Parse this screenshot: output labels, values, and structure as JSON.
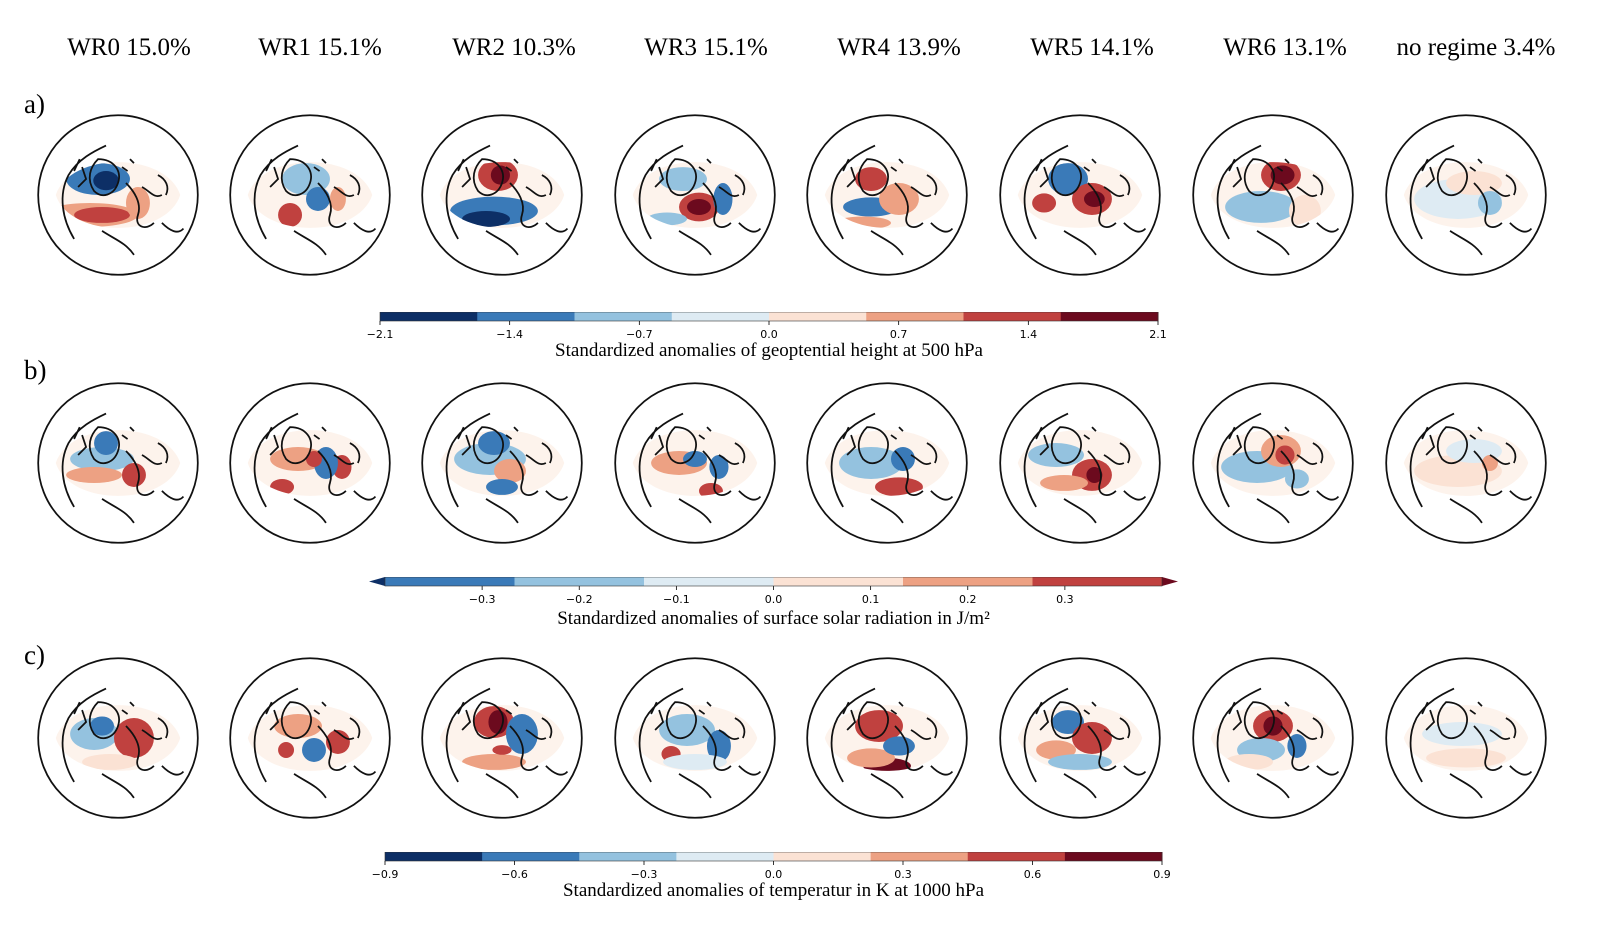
{
  "columns": [
    {
      "label": "WR0 15.0%",
      "id": "WR0",
      "frequency_percent": 15.0
    },
    {
      "label": "WR1 15.1%",
      "id": "WR1",
      "frequency_percent": 15.1
    },
    {
      "label": "WR2 10.3%",
      "id": "WR2",
      "frequency_percent": 10.3
    },
    {
      "label": "WR3 15.1%",
      "id": "WR3",
      "frequency_percent": 15.1
    },
    {
      "label": "WR4 13.9%",
      "id": "WR4",
      "frequency_percent": 13.9
    },
    {
      "label": "WR5 14.1%",
      "id": "WR5",
      "frequency_percent": 14.1
    },
    {
      "label": "WR6 13.1%",
      "id": "WR6",
      "frequency_percent": 13.1
    },
    {
      "label": "no regime 3.4%",
      "id": "no regime",
      "frequency_percent": 3.4
    }
  ],
  "rows": [
    {
      "label": "a)",
      "colorbar": {
        "label": "Standardized anomalies of geoptential height at 500 hPa",
        "ticks": [
          "−2.1",
          "−1.4",
          "−0.7",
          "0.0",
          "0.7",
          "1.4",
          "2.1"
        ],
        "colors": [
          "#0d2f66",
          "#3a7ab8",
          "#94c2df",
          "#deebf3",
          "#fbe2d4",
          "#eda183",
          "#c0413f",
          "#6c0a1e"
        ],
        "extend": false
      }
    },
    {
      "label": "b)",
      "colorbar": {
        "label": "Standardized anomalies of surface solar radiation in J/m²",
        "ticks": [
          "−0.3",
          "−0.2",
          "−0.1",
          "0.0",
          "0.1",
          "0.2",
          "0.3"
        ],
        "colors": [
          "#3a7ab8",
          "#94c2df",
          "#deebf3",
          "#fbe2d4",
          "#eda183",
          "#c0413f"
        ],
        "extend": true
      }
    },
    {
      "label": "c)",
      "colorbar": {
        "label": "Standardized anomalies of temperatur in K at 1000 hPa",
        "ticks": [
          "−0.9",
          "−0.6",
          "−0.3",
          "0.0",
          "0.3",
          "0.6",
          "0.9"
        ],
        "colors": [
          "#0d2f66",
          "#3a7ab8",
          "#94c2df",
          "#deebf3",
          "#fbe2d4",
          "#eda183",
          "#c0413f",
          "#6c0a1e"
        ],
        "extend": false
      }
    }
  ],
  "chart_data": {
    "type": "heatmap",
    "projection": "orthographic (north polar view, North Atlantic sector)",
    "panels": [
      {
        "row": "a)",
        "variable": "geopotential height at 500 hPa",
        "columns": [
          "WR0",
          "WR1",
          "WR2",
          "WR3",
          "WR4",
          "WR5",
          "WR6",
          "no regime"
        ]
      },
      {
        "row": "b)",
        "variable": "surface solar radiation",
        "columns": [
          "WR0",
          "WR1",
          "WR2",
          "WR3",
          "WR4",
          "WR5",
          "WR6",
          "no regime"
        ]
      },
      {
        "row": "c)",
        "variable": "temperature at 1000 hPa",
        "columns": [
          "WR0",
          "WR1",
          "WR2",
          "WR3",
          "WR4",
          "WR5",
          "WR6",
          "no regime"
        ]
      }
    ],
    "anomaly_blobs": {
      "a)": [
        [
          [
            "#3a7ab8",
            -0.25,
            -0.2,
            0.4,
            0.2
          ],
          [
            "#0d2f66",
            -0.15,
            -0.18,
            0.16,
            0.12
          ],
          [
            "#eda183",
            -0.35,
            0.25,
            0.6,
            0.15
          ],
          [
            "#c0413f",
            -0.2,
            0.25,
            0.35,
            0.1
          ],
          [
            "#eda183",
            0.25,
            0.1,
            0.15,
            0.2
          ]
        ],
        [
          [
            "#94c2df",
            -0.05,
            -0.2,
            0.3,
            0.2
          ],
          [
            "#3a7ab8",
            0.1,
            0.05,
            0.15,
            0.15
          ],
          [
            "#c0413f",
            -0.25,
            0.25,
            0.15,
            0.15
          ],
          [
            "#eda183",
            0.35,
            0.05,
            0.1,
            0.15
          ]
        ],
        [
          [
            "#c0413f",
            -0.05,
            -0.25,
            0.25,
            0.2
          ],
          [
            "#6c0a1e",
            -0.02,
            -0.25,
            0.12,
            0.12
          ],
          [
            "#3a7ab8",
            -0.1,
            0.2,
            0.55,
            0.18
          ],
          [
            "#0d2f66",
            -0.2,
            0.3,
            0.3,
            0.1
          ]
        ],
        [
          [
            "#94c2df",
            -0.15,
            -0.2,
            0.3,
            0.15
          ],
          [
            "#c0413f",
            0.05,
            0.15,
            0.25,
            0.18
          ],
          [
            "#6c0a1e",
            0.05,
            0.15,
            0.15,
            0.1
          ],
          [
            "#3a7ab8",
            0.35,
            0.05,
            0.12,
            0.2
          ],
          [
            "#94c2df",
            -0.35,
            0.3,
            0.25,
            0.08
          ]
        ],
        [
          [
            "#c0413f",
            -0.2,
            -0.2,
            0.2,
            0.15
          ],
          [
            "#3a7ab8",
            -0.2,
            0.15,
            0.35,
            0.12
          ],
          [
            "#eda183",
            0.15,
            0.05,
            0.25,
            0.2
          ],
          [
            "#eda183",
            -0.3,
            0.35,
            0.35,
            0.08
          ]
        ],
        [
          [
            "#3a7ab8",
            -0.15,
            -0.2,
            0.25,
            0.2
          ],
          [
            "#c0413f",
            0.15,
            0.05,
            0.25,
            0.2
          ],
          [
            "#6c0a1e",
            0.18,
            0.05,
            0.13,
            0.1
          ],
          [
            "#c0413f",
            -0.45,
            0.1,
            0.15,
            0.12
          ]
        ],
        [
          [
            "#c0413f",
            0.1,
            -0.25,
            0.25,
            0.2
          ],
          [
            "#6c0a1e",
            0.12,
            -0.25,
            0.15,
            0.12
          ],
          [
            "#94c2df",
            -0.15,
            0.15,
            0.45,
            0.2
          ],
          [
            "#fbe2d4",
            0.4,
            0.2,
            0.2,
            0.2
          ]
        ],
        [
          [
            "#deebf3",
            -0.1,
            0.05,
            0.55,
            0.25
          ],
          [
            "#fbe2d4",
            0.1,
            -0.15,
            0.35,
            0.15
          ],
          [
            "#94c2df",
            0.3,
            0.1,
            0.15,
            0.15
          ]
        ]
      ],
      "b)": [
        [
          [
            "#94c2df",
            -0.2,
            -0.05,
            0.4,
            0.15
          ],
          [
            "#eda183",
            -0.3,
            0.15,
            0.35,
            0.1
          ],
          [
            "#c0413f",
            0.2,
            0.15,
            0.15,
            0.15
          ],
          [
            "#3a7ab8",
            -0.15,
            -0.25,
            0.15,
            0.15
          ]
        ],
        [
          [
            "#eda183",
            -0.15,
            -0.05,
            0.35,
            0.15
          ],
          [
            "#c0413f",
            -0.35,
            0.3,
            0.15,
            0.1
          ],
          [
            "#c0413f",
            0.4,
            0.05,
            0.12,
            0.15
          ],
          [
            "#3a7ab8",
            0.2,
            0.0,
            0.15,
            0.2
          ],
          [
            "#c0413f",
            0.05,
            -0.05,
            0.1,
            0.1
          ]
        ],
        [
          [
            "#94c2df",
            -0.15,
            -0.05,
            0.45,
            0.2
          ],
          [
            "#3a7ab8",
            -0.1,
            -0.25,
            0.2,
            0.15
          ],
          [
            "#eda183",
            0.1,
            0.1,
            0.2,
            0.15
          ],
          [
            "#3a7ab8",
            0.0,
            0.3,
            0.2,
            0.1
          ]
        ],
        [
          [
            "#eda183",
            -0.2,
            0.0,
            0.35,
            0.15
          ],
          [
            "#3a7ab8",
            0.0,
            -0.05,
            0.15,
            0.1
          ],
          [
            "#c0413f",
            0.2,
            0.35,
            0.15,
            0.1
          ],
          [
            "#3a7ab8",
            0.3,
            0.05,
            0.12,
            0.15
          ]
        ],
        [
          [
            "#94c2df",
            -0.2,
            0.0,
            0.4,
            0.2
          ],
          [
            "#c0413f",
            0.15,
            0.3,
            0.3,
            0.12
          ],
          [
            "#3a7ab8",
            0.2,
            -0.05,
            0.15,
            0.15
          ]
        ],
        [
          [
            "#94c2df",
            -0.3,
            -0.1,
            0.35,
            0.15
          ],
          [
            "#c0413f",
            0.15,
            0.15,
            0.25,
            0.2
          ],
          [
            "#6c0a1e",
            0.18,
            0.15,
            0.1,
            0.1
          ],
          [
            "#eda183",
            -0.2,
            0.25,
            0.3,
            0.1
          ]
        ],
        [
          [
            "#94c2df",
            -0.2,
            0.05,
            0.45,
            0.2
          ],
          [
            "#eda183",
            0.1,
            -0.15,
            0.25,
            0.2
          ],
          [
            "#c0413f",
            0.15,
            -0.1,
            0.12,
            0.12
          ],
          [
            "#94c2df",
            0.3,
            0.2,
            0.15,
            0.12
          ]
        ],
        [
          [
            "#fbe2d4",
            -0.1,
            0.1,
            0.55,
            0.2
          ],
          [
            "#deebf3",
            0.1,
            -0.15,
            0.35,
            0.15
          ],
          [
            "#eda183",
            0.3,
            0.0,
            0.1,
            0.1
          ]
        ]
      ],
      "c)": [
        [
          [
            "#94c2df",
            -0.3,
            -0.05,
            0.3,
            0.2
          ],
          [
            "#3a7ab8",
            -0.2,
            -0.15,
            0.15,
            0.12
          ],
          [
            "#c0413f",
            0.2,
            0.0,
            0.25,
            0.25
          ],
          [
            "#fbe2d4",
            -0.1,
            0.3,
            0.35,
            0.1
          ]
        ],
        [
          [
            "#eda183",
            -0.15,
            -0.15,
            0.3,
            0.15
          ],
          [
            "#c0413f",
            -0.3,
            0.15,
            0.1,
            0.1
          ],
          [
            "#3a7ab8",
            0.05,
            0.15,
            0.15,
            0.15
          ],
          [
            "#c0413f",
            0.35,
            0.05,
            0.15,
            0.15
          ]
        ],
        [
          [
            "#c0413f",
            -0.1,
            -0.2,
            0.25,
            0.2
          ],
          [
            "#6c0a1e",
            -0.05,
            -0.2,
            0.12,
            0.15
          ],
          [
            "#3a7ab8",
            0.25,
            -0.05,
            0.2,
            0.25
          ],
          [
            "#eda183",
            -0.1,
            0.3,
            0.4,
            0.1
          ],
          [
            "#c0413f",
            0.0,
            0.15,
            0.12,
            0.06
          ]
        ],
        [
          [
            "#94c2df",
            -0.1,
            -0.1,
            0.35,
            0.2
          ],
          [
            "#c0413f",
            -0.3,
            0.2,
            0.12,
            0.1
          ],
          [
            "#3a7ab8",
            0.3,
            0.1,
            0.15,
            0.2
          ],
          [
            "#deebf3",
            0.0,
            0.3,
            0.4,
            0.1
          ]
        ],
        [
          [
            "#c0413f",
            -0.1,
            -0.15,
            0.3,
            0.2
          ],
          [
            "#6c0a1e",
            0.0,
            0.35,
            0.3,
            0.1
          ],
          [
            "#eda183",
            -0.2,
            0.25,
            0.3,
            0.12
          ],
          [
            "#3a7ab8",
            0.15,
            0.1,
            0.2,
            0.12
          ]
        ],
        [
          [
            "#3a7ab8",
            -0.15,
            -0.2,
            0.2,
            0.15
          ],
          [
            "#c0413f",
            0.15,
            0.0,
            0.25,
            0.2
          ],
          [
            "#eda183",
            -0.3,
            0.15,
            0.25,
            0.12
          ],
          [
            "#94c2df",
            0.0,
            0.3,
            0.4,
            0.1
          ]
        ],
        [
          [
            "#c0413f",
            0.0,
            -0.15,
            0.25,
            0.2
          ],
          [
            "#6c0a1e",
            0.0,
            -0.15,
            0.12,
            0.12
          ],
          [
            "#94c2df",
            -0.15,
            0.15,
            0.3,
            0.15
          ],
          [
            "#3a7ab8",
            0.3,
            0.1,
            0.12,
            0.15
          ],
          [
            "#fbe2d4",
            -0.3,
            0.3,
            0.3,
            0.1
          ]
        ],
        [
          [
            "#deebf3",
            -0.05,
            -0.05,
            0.5,
            0.15
          ],
          [
            "#fbe2d4",
            0.0,
            0.25,
            0.5,
            0.12
          ]
        ]
      ]
    }
  }
}
